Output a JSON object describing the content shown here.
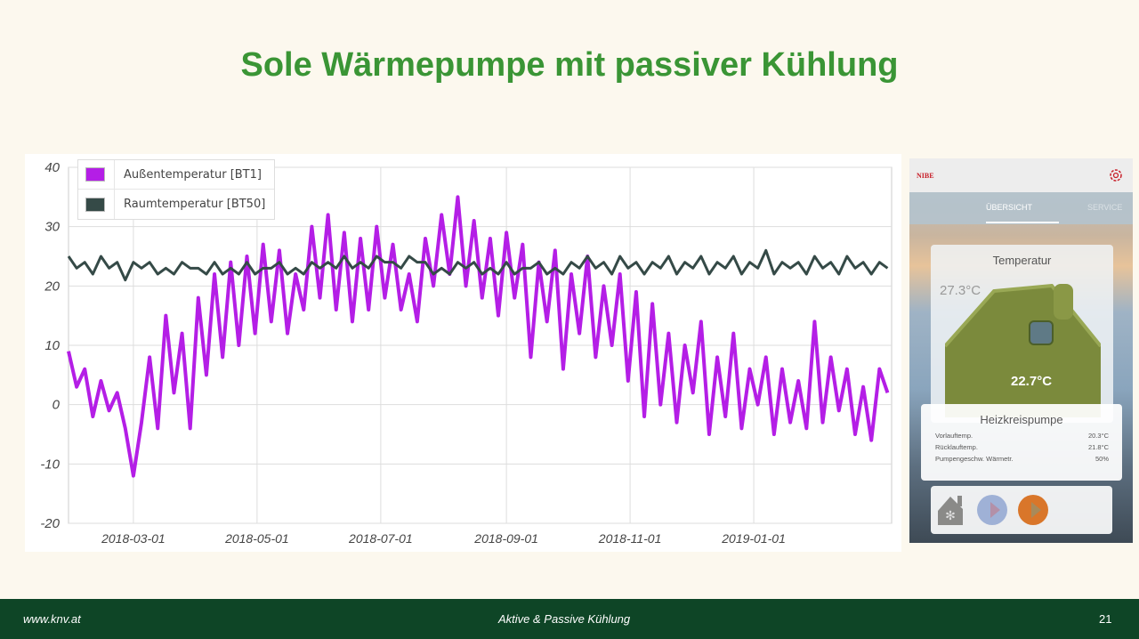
{
  "title": "Sole Wärmepumpe mit passiver Kühlung",
  "chart_data": {
    "type": "line",
    "title": "",
    "xlabel": "",
    "ylabel": "",
    "start_date": "2018-01-28",
    "step_days": 4,
    "ylim": [
      -20,
      40
    ],
    "yticks": [
      "40",
      "30",
      "20",
      "10",
      "0",
      "-10",
      "-20"
    ],
    "ytick_values": [
      40,
      30,
      20,
      10,
      0,
      -10,
      -20
    ],
    "xticks": [
      {
        "label": "2018-03-01",
        "day": 32
      },
      {
        "label": "2018-05-01",
        "day": 93
      },
      {
        "label": "2018-07-01",
        "day": 154
      },
      {
        "label": "2018-09-01",
        "day": 216
      },
      {
        "label": "2018-11-01",
        "day": 277
      },
      {
        "label": "2019-01-01",
        "day": 338
      }
    ],
    "x_range_days": [
      0,
      406
    ],
    "grid": true,
    "legend_position": "top-left",
    "series": [
      {
        "name": "Außentemperatur [BT1]",
        "color": "#b41ee6",
        "values": [
          9,
          3,
          6,
          -2,
          4,
          -1,
          2,
          -4,
          -12,
          -3,
          8,
          -4,
          15,
          2,
          12,
          -4,
          18,
          5,
          22,
          8,
          24,
          10,
          25,
          12,
          27,
          14,
          26,
          12,
          22,
          16,
          30,
          18,
          32,
          16,
          29,
          14,
          28,
          16,
          30,
          18,
          27,
          16,
          22,
          14,
          28,
          20,
          32,
          22,
          35,
          20,
          31,
          18,
          28,
          15,
          29,
          18,
          27,
          8,
          24,
          14,
          26,
          6,
          22,
          12,
          25,
          8,
          20,
          10,
          22,
          4,
          19,
          -2,
          17,
          0,
          12,
          -3,
          10,
          2,
          14,
          -5,
          8,
          -2,
          12,
          -4,
          6,
          0,
          8,
          -5,
          6,
          -3,
          4,
          -4,
          14,
          -3,
          8,
          -1,
          6,
          -5,
          3,
          -6,
          6,
          2
        ]
      },
      {
        "name": "Raumtemperatur [BT50]",
        "color": "#354a47",
        "values": [
          25,
          23,
          24,
          22,
          25,
          23,
          24,
          21,
          24,
          23,
          24,
          22,
          23,
          22,
          24,
          23,
          23,
          22,
          24,
          22,
          23,
          22,
          24,
          22,
          23,
          23,
          24,
          22,
          23,
          22,
          24,
          23,
          24,
          23,
          25,
          23,
          24,
          23,
          25,
          24,
          24,
          23,
          25,
          24,
          24,
          22,
          23,
          22,
          24,
          23,
          24,
          22,
          23,
          22,
          24,
          22,
          23,
          23,
          24,
          22,
          23,
          22,
          24,
          23,
          25,
          23,
          24,
          22,
          25,
          23,
          24,
          22,
          24,
          23,
          25,
          22,
          24,
          23,
          25,
          22,
          24,
          23,
          25,
          22,
          24,
          23,
          26,
          22,
          24,
          23,
          24,
          22,
          25,
          23,
          24,
          22,
          25,
          23,
          24,
          22,
          24,
          23
        ]
      }
    ]
  },
  "app": {
    "logo": "NIBE",
    "tabs": [
      "ÜBERSICHT",
      "SERVICE"
    ],
    "card_title": "Temperatur",
    "outdoor_temp": "27.3°C",
    "indoor_temp": "22.7°C",
    "pump_title": "Heizkreispumpe",
    "rows": [
      {
        "label": "Vorlauftemp.",
        "value": "20.3°C"
      },
      {
        "label": "Rücklauftemp.",
        "value": "21.8°C"
      },
      {
        "label": "Pumpengeschw. Wärmetr.",
        "value": "50%"
      }
    ]
  },
  "footer": {
    "left": "www.knv.at",
    "center": "Aktive & Passive Kühlung",
    "page": "21"
  }
}
